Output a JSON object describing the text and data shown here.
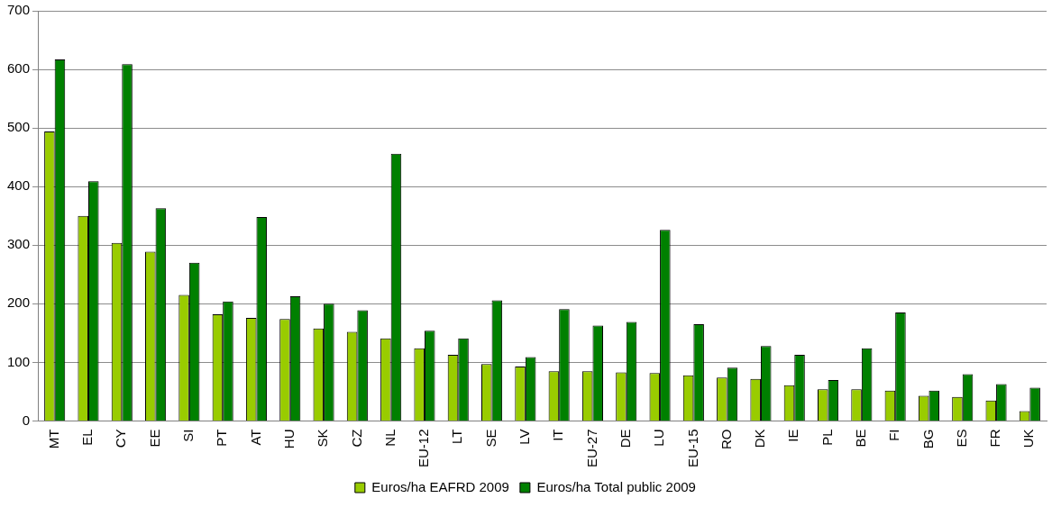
{
  "chart_data": {
    "type": "bar",
    "categories": [
      "MT",
      "EL",
      "CY",
      "EE",
      "SI",
      "PT",
      "AT",
      "HU",
      "SK",
      "CZ",
      "NL",
      "EU-12",
      "LT",
      "SE",
      "LV",
      "IT",
      "EU-27",
      "DE",
      "LU",
      "EU-15",
      "RO",
      "DK",
      "IE",
      "PL",
      "BE",
      "FI",
      "BG",
      "ES",
      "FR",
      "UK"
    ],
    "series": [
      {
        "name": "Euros/ha EAFRD 2009",
        "color": "#99cc00",
        "values": [
          494,
          350,
          304,
          289,
          215,
          182,
          176,
          174,
          158,
          152,
          141,
          124,
          113,
          97,
          93,
          85,
          85,
          83,
          82,
          78,
          74,
          72,
          61,
          54,
          54,
          52,
          43,
          41,
          35,
          17
        ]
      },
      {
        "name": "Euros/ha Total public 2009",
        "color": "#008000",
        "values": [
          617,
          409,
          609,
          363,
          270,
          204,
          348,
          213,
          200,
          189,
          456,
          154,
          141,
          206,
          109,
          191,
          163,
          169,
          326,
          165,
          91,
          128,
          113,
          70,
          124,
          185,
          52,
          80,
          63,
          57
        ]
      }
    ],
    "ylim": [
      0,
      700
    ],
    "yticks": [
      0,
      100,
      200,
      300,
      400,
      500,
      600,
      700
    ],
    "grid": "y",
    "legend": "bottom"
  }
}
